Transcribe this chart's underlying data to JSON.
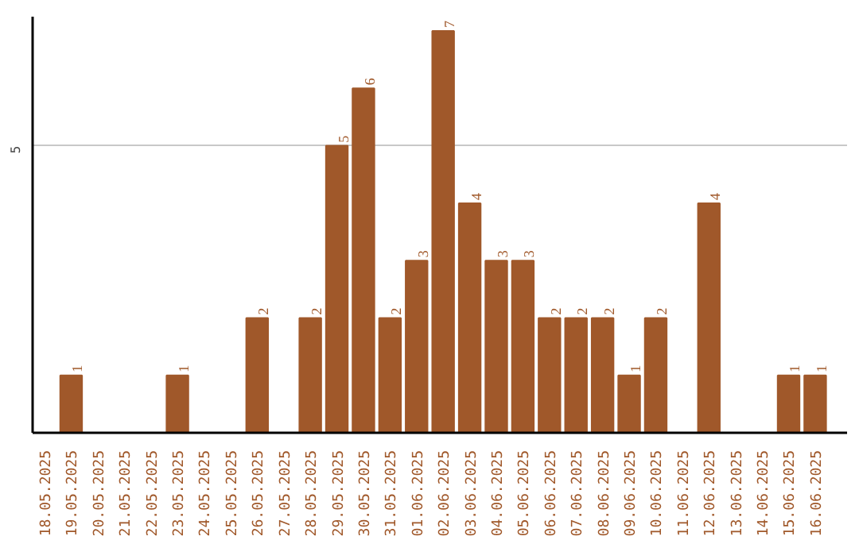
{
  "chart_data": {
    "type": "bar",
    "categories": [
      "18.05.2025",
      "19.05.2025",
      "20.05.2025",
      "21.05.2025",
      "22.05.2025",
      "23.05.2025",
      "24.05.2025",
      "25.05.2025",
      "26.05.2025",
      "27.05.2025",
      "28.05.2025",
      "29.05.2025",
      "30.05.2025",
      "31.05.2025",
      "01.06.2025",
      "02.06.2025",
      "03.06.2025",
      "04.06.2025",
      "05.06.2025",
      "06.06.2025",
      "07.06.2025",
      "08.06.2025",
      "09.06.2025",
      "10.06.2025",
      "11.06.2025",
      "12.06.2025",
      "13.06.2025",
      "14.06.2025",
      "15.06.2025",
      "16.06.2025"
    ],
    "values": [
      0,
      1,
      0,
      0,
      0,
      1,
      0,
      0,
      2,
      0,
      2,
      5,
      6,
      2,
      3,
      7,
      4,
      3,
      3,
      2,
      2,
      2,
      1,
      2,
      0,
      4,
      0,
      0,
      1,
      1
    ],
    "value_labels": [
      null,
      "1",
      null,
      null,
      null,
      "1",
      null,
      null,
      "2",
      null,
      "2",
      "5",
      "6",
      "2",
      "3",
      "7",
      "4",
      "3",
      "3",
      "2",
      "2",
      "2",
      "1",
      "2",
      null,
      "4",
      null,
      null,
      "1",
      "1"
    ],
    "color": "#a0582a",
    "ylim": [
      0,
      7.25
    ],
    "yticks": [
      5
    ],
    "grid": "y"
  }
}
